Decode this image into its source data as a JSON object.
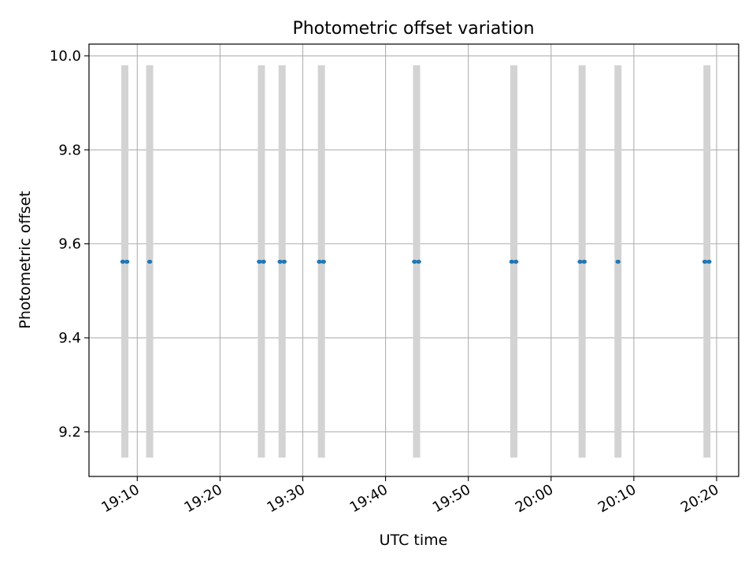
{
  "chart_data": {
    "type": "scatter",
    "title": "Photometric offset variation",
    "xlabel": "UTC time",
    "ylabel": "Photometric offset",
    "x_range": [
      "19:04:10",
      "20:22:40"
    ],
    "ylim": [
      9.105,
      10.025
    ],
    "x_ticks": [
      "19:10",
      "19:20",
      "19:30",
      "19:40",
      "19:50",
      "20:00",
      "20:10",
      "20:20"
    ],
    "y_ticks": [
      "9.2",
      "9.4",
      "9.6",
      "9.8",
      "10.0"
    ],
    "grid": true,
    "colors": {
      "points": "#1f77b4",
      "bands": "#d3d3d3",
      "grid": "#b0b0b0"
    },
    "bands": {
      "y_range": [
        9.145,
        9.98
      ],
      "x": [
        "19:08:30",
        "19:11:30",
        "19:25:00",
        "19:27:30",
        "19:32:15",
        "19:43:45",
        "19:55:30",
        "20:03:45",
        "20:08:05",
        "20:18:50"
      ]
    },
    "series": [
      {
        "x": [
          "19:08:15",
          "19:08:45",
          "19:11:30",
          "19:24:45",
          "19:25:15",
          "19:27:15",
          "19:27:45",
          "19:32:00",
          "19:32:30",
          "19:43:30",
          "19:44:00",
          "19:55:15",
          "19:55:45",
          "20:03:30",
          "20:04:00",
          "20:08:05",
          "20:18:35",
          "20:19:05"
        ],
        "y": [
          9.562,
          9.562,
          9.562,
          9.562,
          9.562,
          9.562,
          9.562,
          9.562,
          9.562,
          9.562,
          9.562,
          9.562,
          9.562,
          9.562,
          9.562,
          9.562,
          9.562,
          9.562
        ]
      }
    ]
  }
}
